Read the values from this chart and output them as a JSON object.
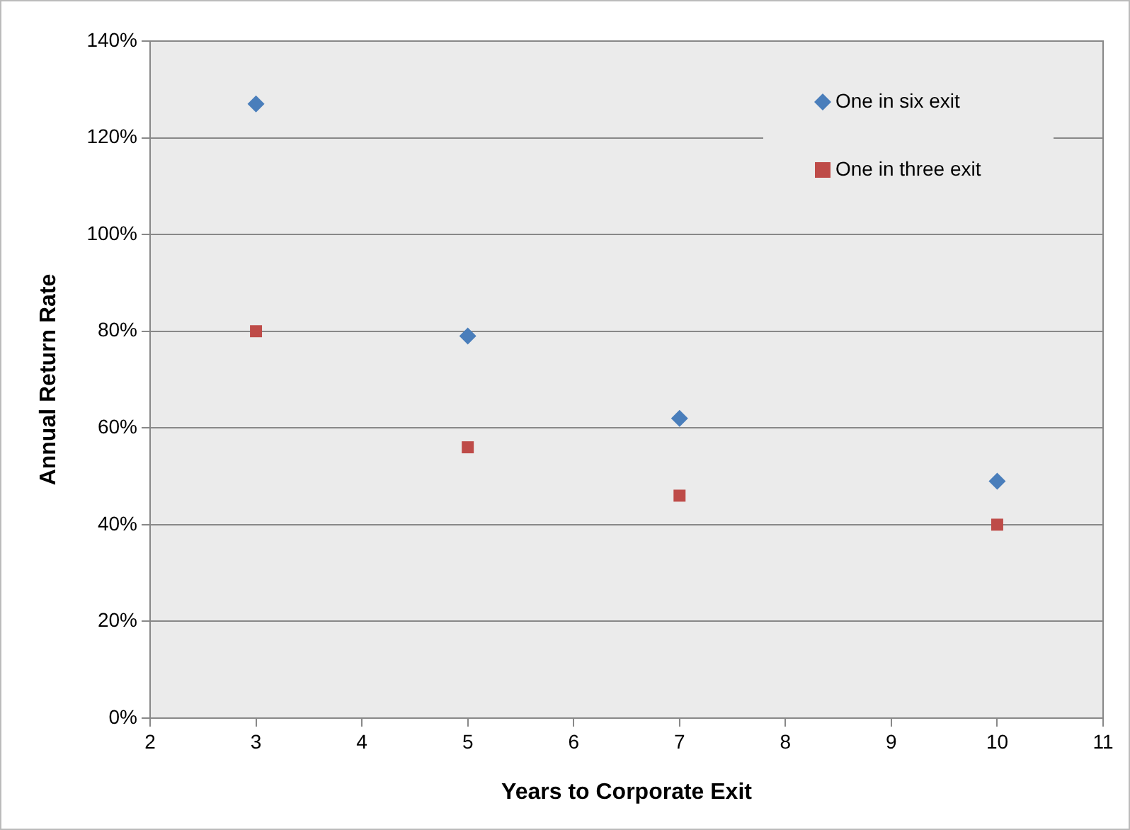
{
  "chart_data": {
    "type": "scatter",
    "xlabel": "Years to Corporate Exit",
    "ylabel": "Annual Return Rate",
    "x": [
      3,
      5,
      7,
      10
    ],
    "series": [
      {
        "name": "One in six exit",
        "color": "#4a7ebb",
        "marker": "diamond",
        "values": [
          127,
          79,
          62,
          49
        ]
      },
      {
        "name": "One in three exit",
        "color": "#be4b48",
        "marker": "square",
        "values": [
          80,
          56,
          46,
          40
        ]
      }
    ],
    "xlim": [
      2,
      11
    ],
    "xticks": [
      2,
      3,
      4,
      5,
      6,
      7,
      8,
      9,
      10,
      11
    ],
    "ylim": [
      0,
      140
    ],
    "yticks": [
      {
        "value": 0,
        "label": "0%"
      },
      {
        "value": 20,
        "label": "20%"
      },
      {
        "value": 40,
        "label": "40%"
      },
      {
        "value": 60,
        "label": "60%"
      },
      {
        "value": 80,
        "label": "80%"
      },
      {
        "value": 100,
        "label": "100%"
      },
      {
        "value": 120,
        "label": "120%"
      },
      {
        "value": 140,
        "label": "140%"
      }
    ],
    "grid": "y",
    "legend": "top right"
  }
}
